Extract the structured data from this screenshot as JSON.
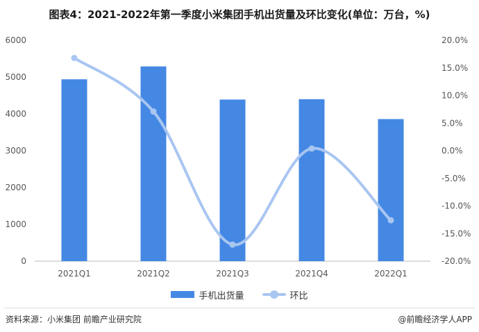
{
  "title": "图表4：2021-2022年第一季度小米集团手机出货量及环比变化(单位：万台，%)",
  "chart_data": {
    "type": "bar",
    "categories": [
      "2021Q1",
      "2021Q2",
      "2021Q3",
      "2021Q4",
      "2022Q1"
    ],
    "series": [
      {
        "name": "手机出货量",
        "type": "bar",
        "axis": "left",
        "values": [
          4940,
          5290,
          4390,
          4400,
          3860
        ]
      },
      {
        "name": "环比",
        "type": "line",
        "axis": "right",
        "smooth": true,
        "values": [
          16.8,
          7.1,
          -17.0,
          0.4,
          -12.6
        ]
      }
    ],
    "y_left": {
      "ylim": [
        0,
        6000
      ],
      "ticks": [
        "0",
        "1000",
        "2000",
        "3000",
        "4000",
        "5000",
        "6000"
      ]
    },
    "y_right": {
      "ylim": [
        -20,
        20
      ],
      "ticks": [
        "-20.0%",
        "-15.0%",
        "-10.0%",
        "-5.0%",
        "0.0%",
        "5.0%",
        "10.0%",
        "15.0%",
        "20.0%"
      ]
    },
    "grid": false,
    "legend": "bottom"
  },
  "colors": {
    "bar": "#4488e4",
    "line": "#a9c6f1"
  },
  "source": "资料来源：小米集团 前瞻产业研究院",
  "brand": "@前瞻经济学人APP"
}
